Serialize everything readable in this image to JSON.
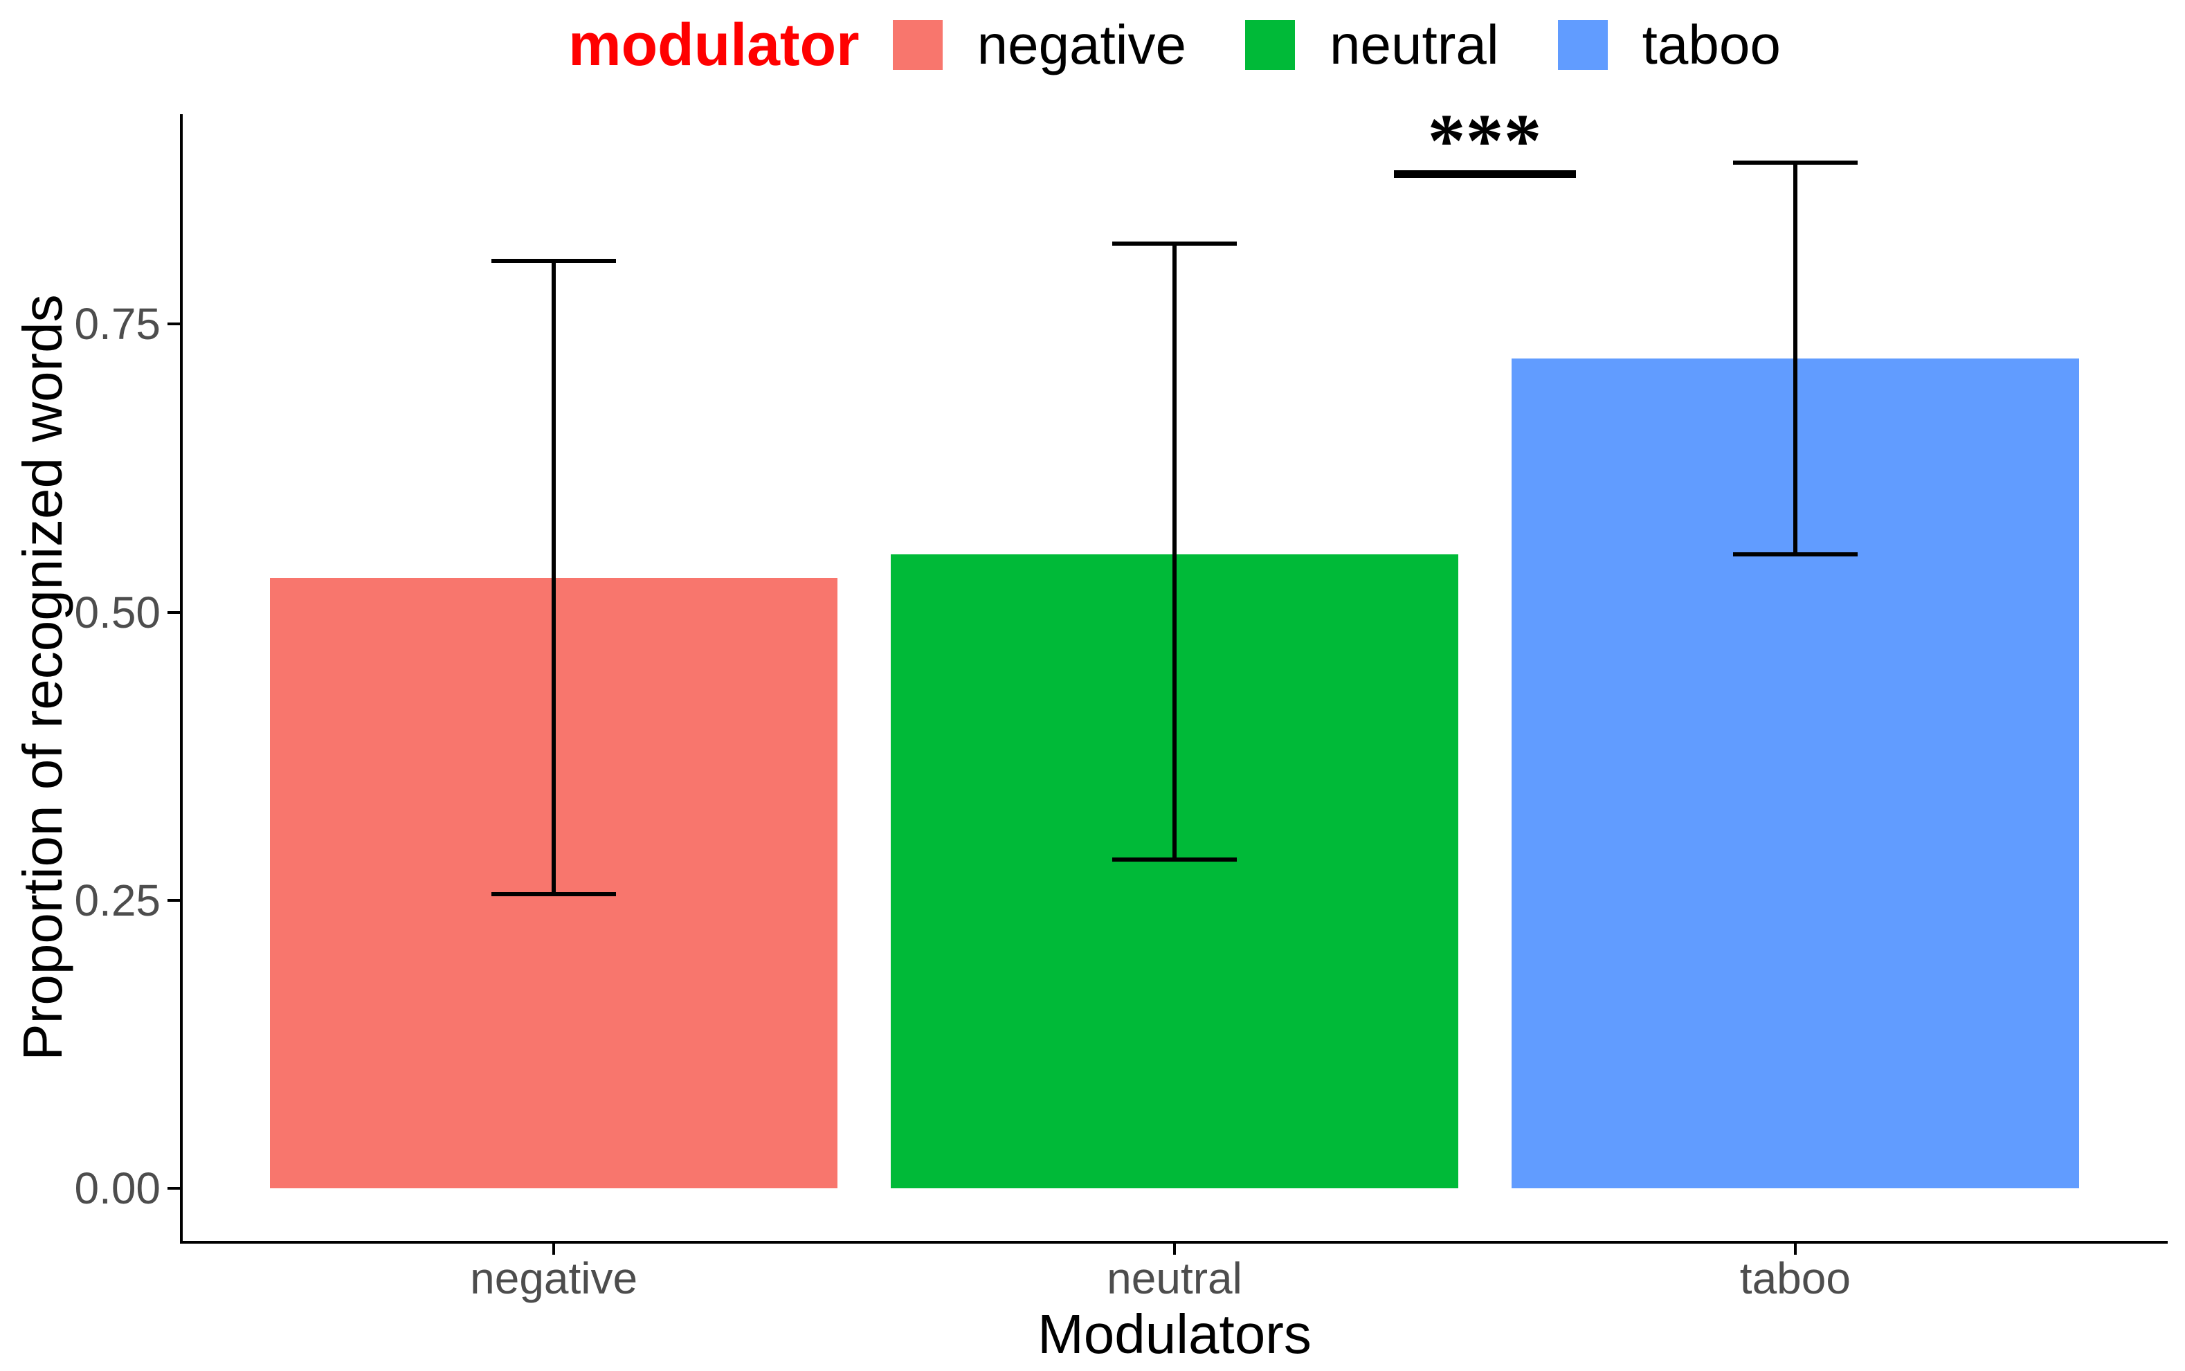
{
  "legend": {
    "title": "modulator",
    "title_color": "#FF0000",
    "items": [
      {
        "label": "negative",
        "color": "#F8766D"
      },
      {
        "label": "neutral",
        "color": "#00BA38"
      },
      {
        "label": "taboo",
        "color": "#619CFF"
      }
    ]
  },
  "axes": {
    "y_title": "Proportion of recognized words",
    "x_title": "Modulators",
    "y_tick_labels": [
      "0.00",
      "0.25",
      "0.50",
      "0.75"
    ],
    "x_tick_labels": [
      "negative",
      "neutral",
      "taboo"
    ]
  },
  "annotation": {
    "text": "***"
  },
  "chart_data": {
    "type": "bar",
    "title": "",
    "categories": [
      "negative",
      "neutral",
      "taboo"
    ],
    "values": [
      0.53,
      0.55,
      0.72
    ],
    "error_low": [
      0.255,
      0.285,
      0.55
    ],
    "error_high": [
      0.805,
      0.82,
      0.89
    ],
    "colors": [
      "#F8766D",
      "#00BA38",
      "#619CFF"
    ],
    "xlabel": "Modulators",
    "ylabel": "Proportion of recognized words",
    "ylim": [
      0,
      0.93
    ],
    "yticks": [
      0,
      0.25,
      0.5,
      0.75
    ],
    "ytick_labels": [
      "0.00",
      "0.25",
      "0.50",
      "0.75"
    ],
    "legend_title": "modulator",
    "legend_position": "top",
    "grid": false,
    "background": "#ffffff",
    "significance": {
      "text": "***",
      "between": [
        "neutral",
        "taboo"
      ],
      "y": 0.88
    }
  }
}
